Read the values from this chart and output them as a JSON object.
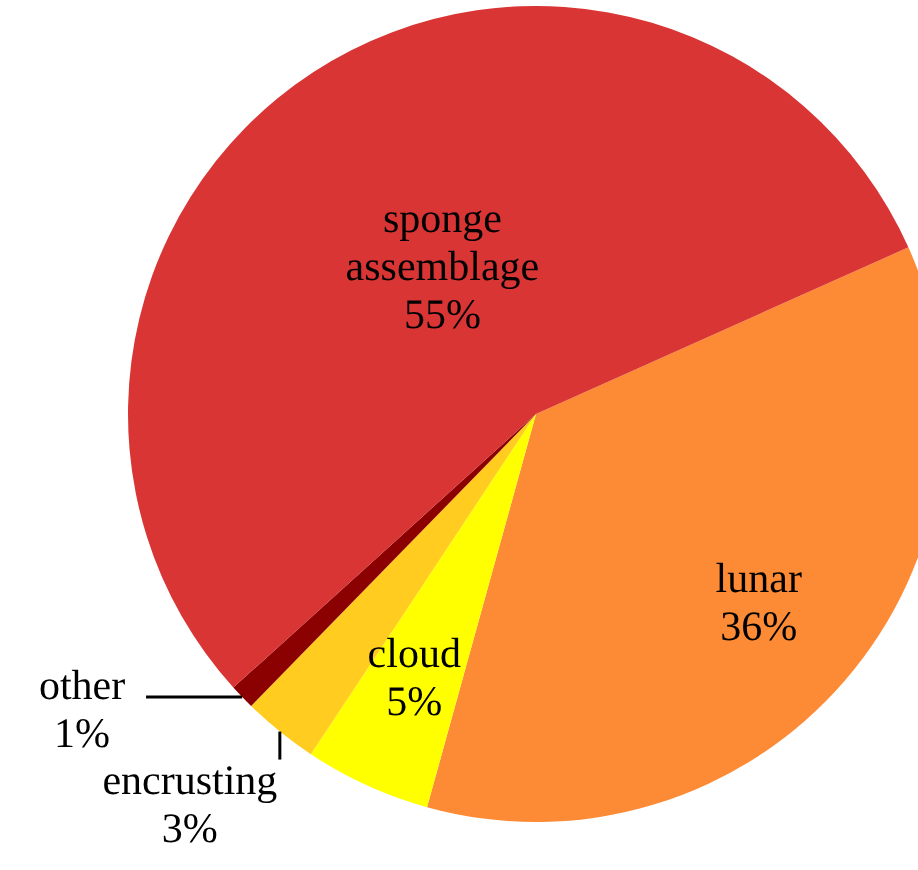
{
  "chart_data": {
    "type": "pie",
    "categories": [
      "lunar",
      "cloud",
      "encrusting",
      "other",
      "sponge assemblage"
    ],
    "values": [
      36,
      5,
      3,
      1,
      55
    ],
    "value_labels": [
      "36%",
      "5%",
      "3%",
      "1%",
      "55%"
    ],
    "colors": [
      "#fd8a35",
      "#ffff00",
      "#ffcc1f",
      "#8b0000",
      "#d93535"
    ]
  }
}
